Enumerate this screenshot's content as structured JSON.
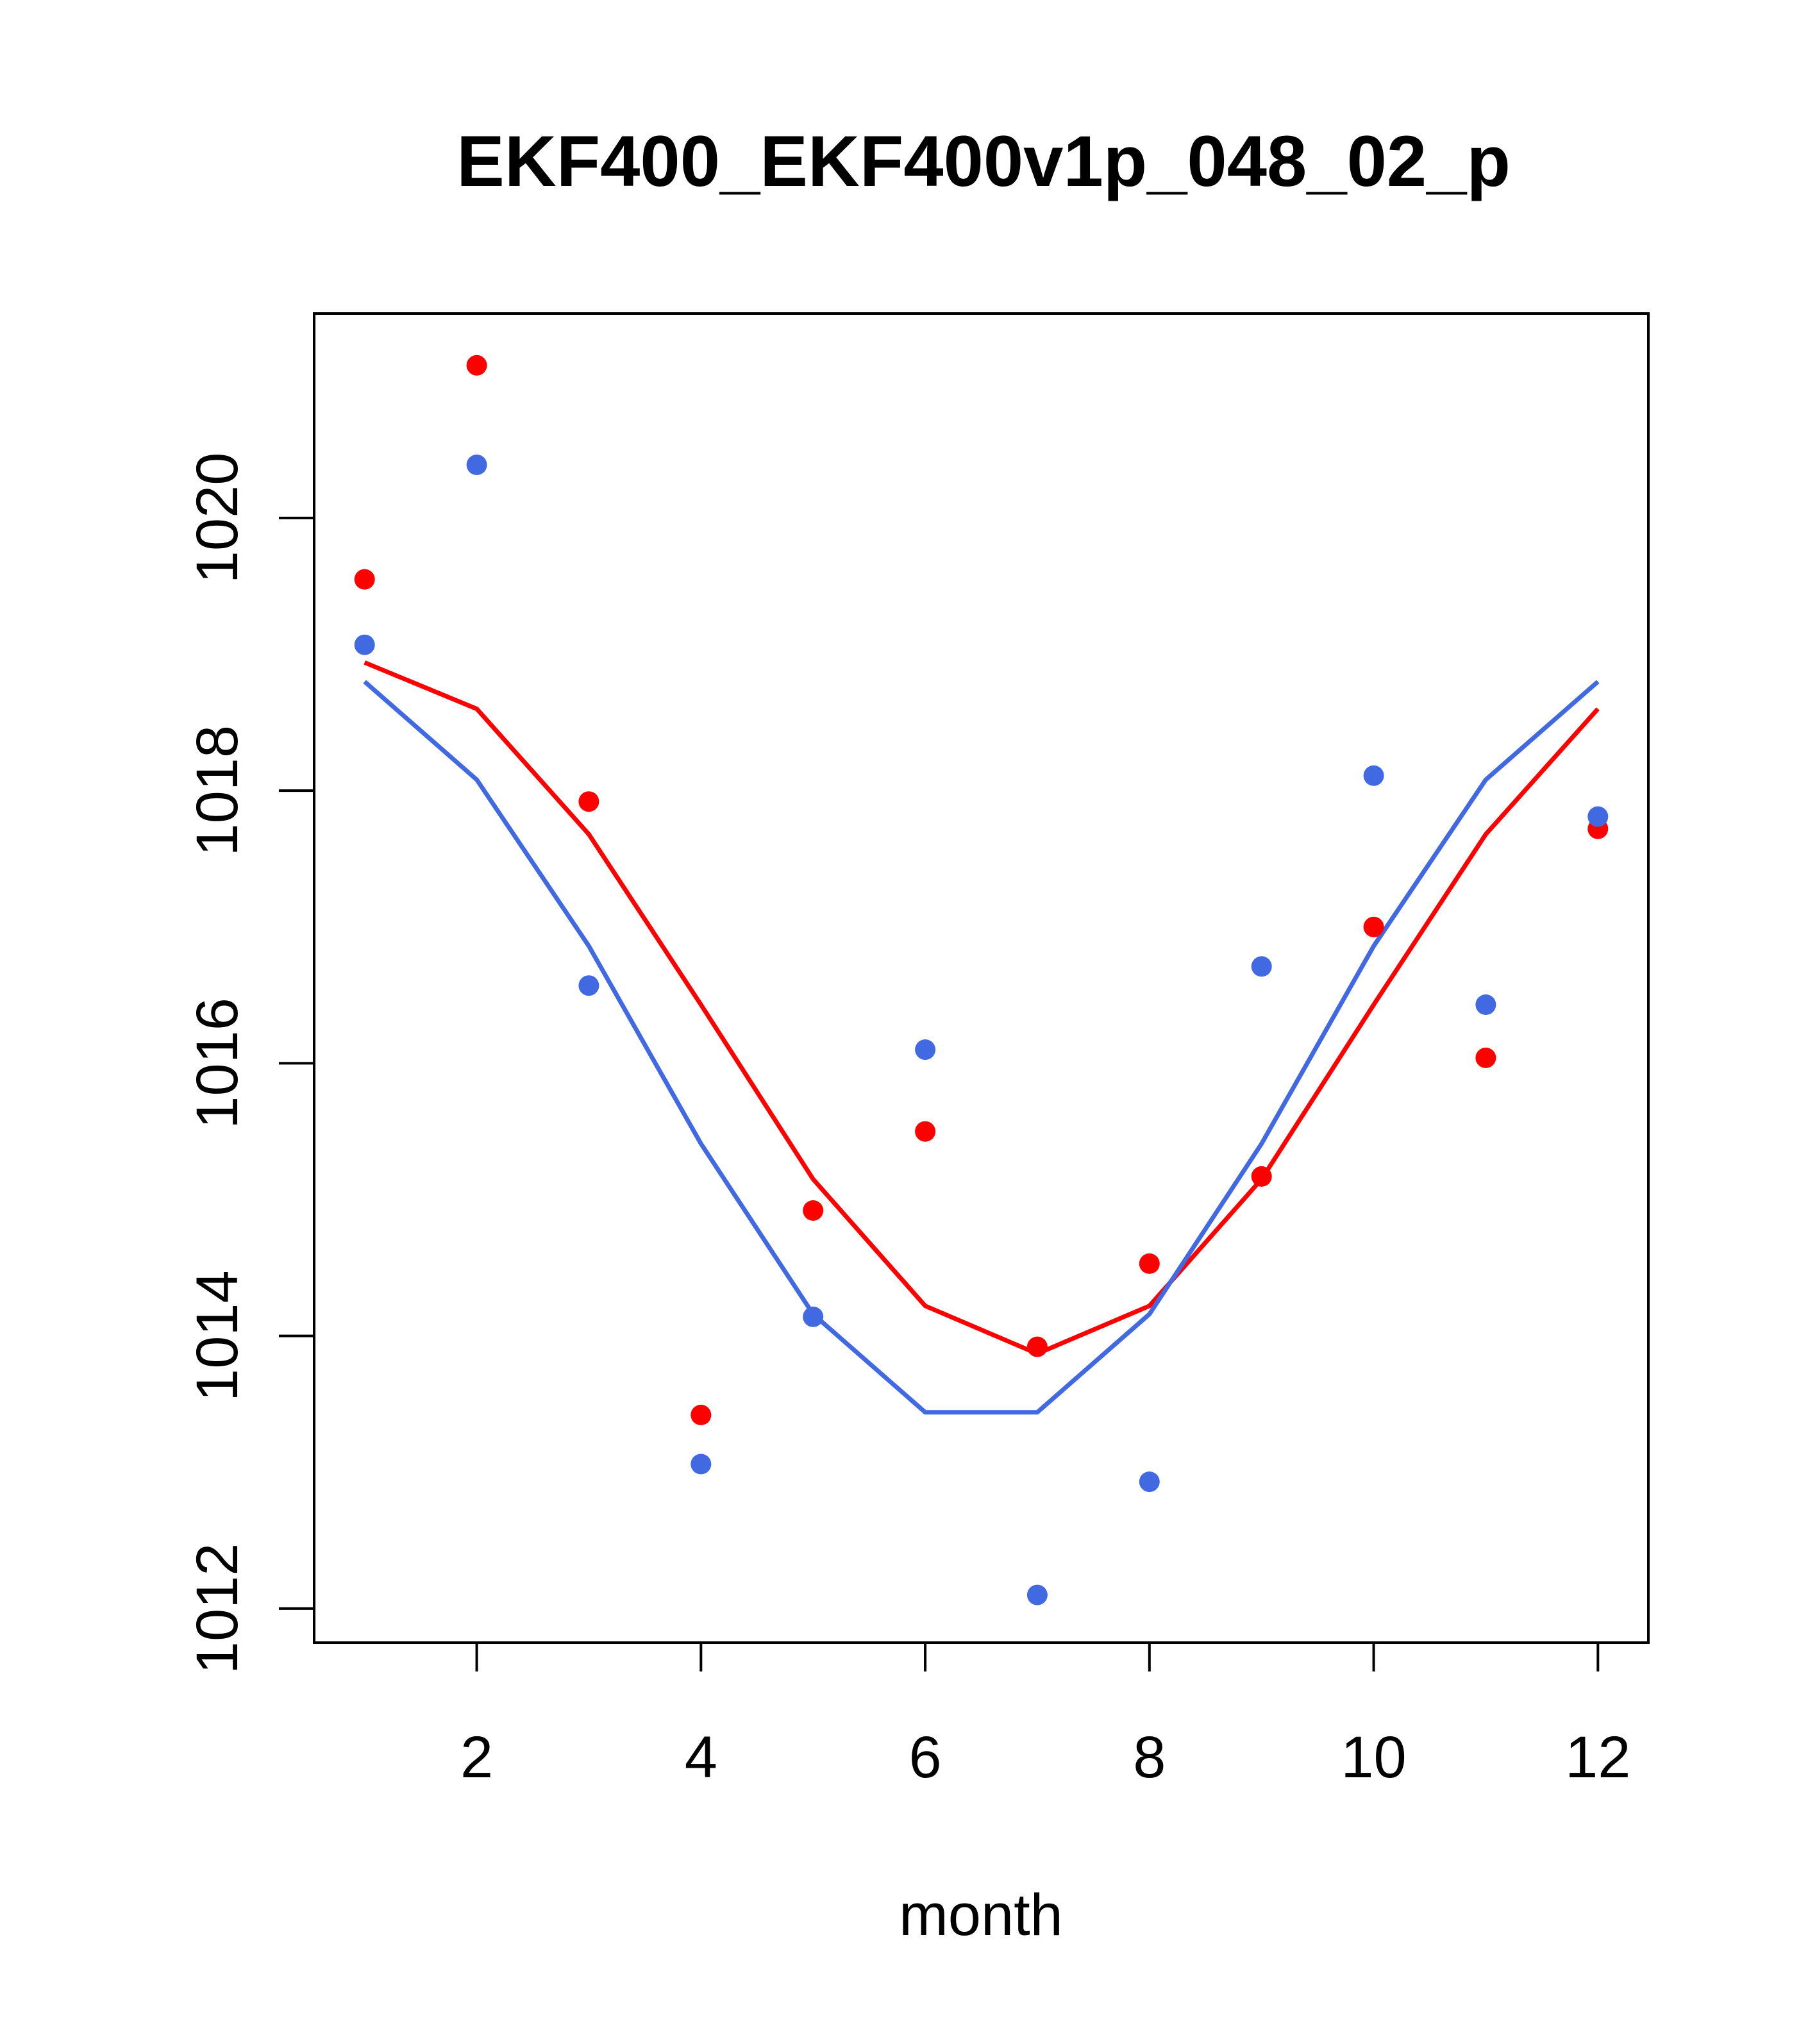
{
  "chart_data": {
    "type": "scatter",
    "title": "EKF400_EKF400v1p_048_02_p",
    "xlabel": "month",
    "ylabel": "",
    "xlim": [
      0.55,
      12.45
    ],
    "ylim": [
      1011.75,
      1021.5
    ],
    "xticks": [
      2,
      4,
      6,
      8,
      10,
      12
    ],
    "yticks": [
      1012,
      1014,
      1016,
      1018,
      1020
    ],
    "grid": false,
    "series": [
      {
        "name": "red points",
        "kind": "points",
        "color": "#FF0000",
        "x": [
          1,
          2,
          3,
          4,
          5,
          6,
          7,
          8,
          9,
          10,
          11,
          12
        ],
        "y": [
          1019.55,
          1021.12,
          1017.92,
          1013.42,
          1014.92,
          1015.5,
          1013.92,
          1014.53,
          1015.17,
          1017.0,
          1016.04,
          1017.72
        ]
      },
      {
        "name": "blue points",
        "kind": "points",
        "color": "#4169E1",
        "x": [
          1,
          2,
          3,
          4,
          5,
          6,
          7,
          8,
          9,
          10,
          11,
          12
        ],
        "y": [
          1019.07,
          1020.39,
          1016.57,
          1013.06,
          1014.14,
          1016.1,
          1012.1,
          1012.93,
          1016.71,
          1018.11,
          1016.43,
          1017.81
        ]
      },
      {
        "name": "red line",
        "kind": "line",
        "color": "#FF0000",
        "x": [
          1,
          2,
          3,
          4,
          5,
          6,
          7,
          8,
          9,
          10,
          11,
          12
        ],
        "y": [
          1018.94,
          1018.6,
          1017.68,
          1016.43,
          1015.15,
          1014.22,
          1013.87,
          1014.22,
          1015.15,
          1016.43,
          1017.68,
          1018.6
        ]
      },
      {
        "name": "blue line",
        "kind": "line",
        "color": "#4169E1",
        "x": [
          1,
          2,
          3,
          4,
          5,
          6,
          7,
          8,
          9,
          10,
          11,
          12
        ],
        "y": [
          1018.8,
          1018.08,
          1016.86,
          1015.41,
          1014.16,
          1013.44,
          1013.44,
          1014.16,
          1015.41,
          1016.86,
          1018.08,
          1018.8
        ]
      }
    ]
  }
}
